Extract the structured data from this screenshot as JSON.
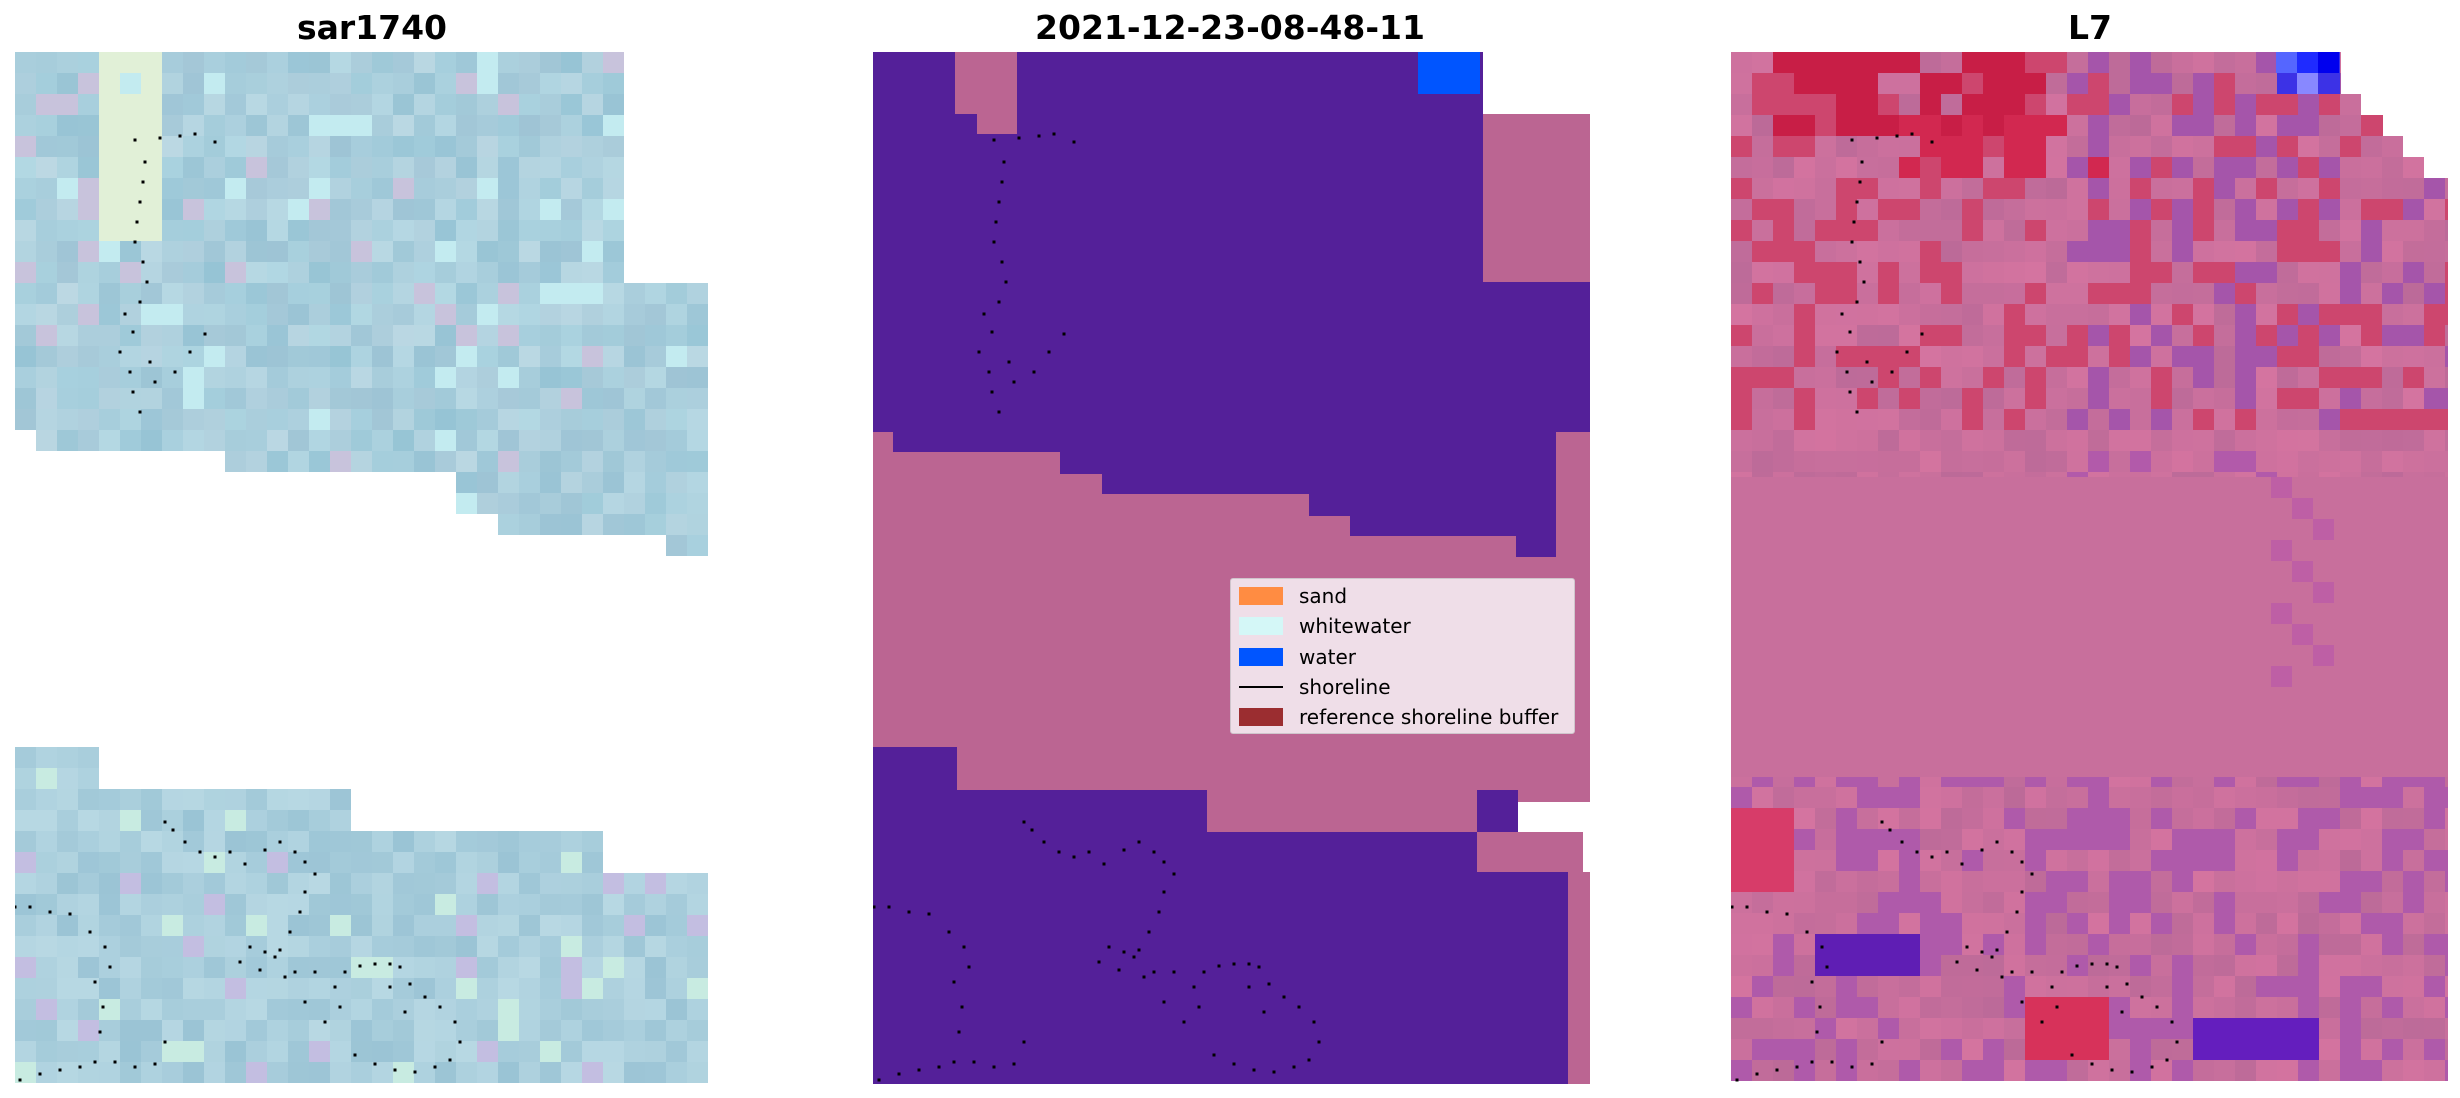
{
  "titles": {
    "left": "sar1740",
    "middle": "2021-12-23-08-48-11",
    "right": "L7"
  },
  "legend": {
    "items": [
      {
        "label": "sand",
        "color": "#ff8c42"
      },
      {
        "label": "whitewater",
        "color": "#d4f7f7"
      },
      {
        "label": "water",
        "color": "#0055ff"
      },
      {
        "label": "shoreline",
        "color": "#000000"
      },
      {
        "label": "reference shoreline buffer",
        "color": "#9b2d30"
      }
    ]
  },
  "colors": {
    "classified_water_region": "#542099",
    "classified_other": "#bb6592",
    "water_blue": "#0055ff",
    "sar_base": "#a9cedc",
    "index_base": "#c86f9c"
  }
}
